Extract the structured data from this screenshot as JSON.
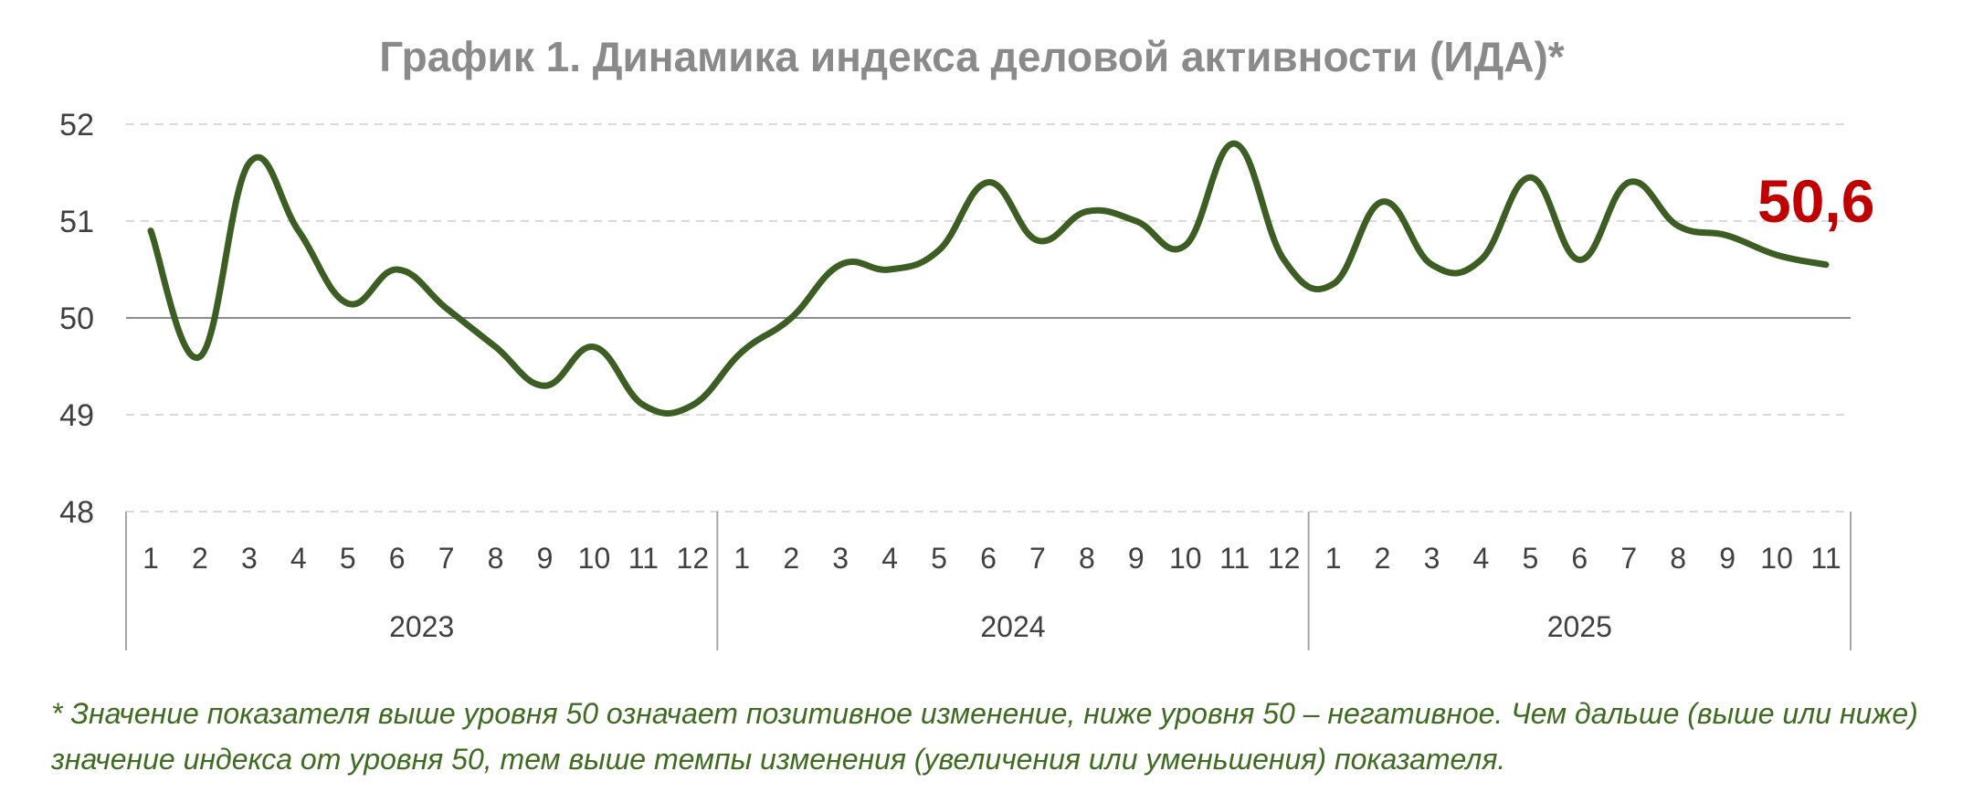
{
  "chart_data": {
    "type": "line",
    "title": "График 1. Динамика индекса деловой активности (ИДА)*",
    "ylim": [
      48,
      52
    ],
    "yticks": [
      "48",
      "49",
      "50",
      "51",
      "52"
    ],
    "reference_line": 50,
    "grid": "horizontal dashed",
    "groups": [
      {
        "label": "2023",
        "months": [
          "1",
          "2",
          "3",
          "4",
          "5",
          "6",
          "7",
          "8",
          "9",
          "10",
          "11",
          "12"
        ]
      },
      {
        "label": "2024",
        "months": [
          "1",
          "2",
          "3",
          "4",
          "5",
          "6",
          "7",
          "8",
          "9",
          "10",
          "11",
          "12"
        ]
      },
      {
        "label": "2025",
        "months": [
          "1",
          "2",
          "3",
          "4",
          "5",
          "6",
          "7",
          "8",
          "9",
          "10",
          "11"
        ]
      }
    ],
    "series": [
      {
        "values": [
          50.9,
          49.6,
          51.6,
          50.9,
          50.15,
          50.5,
          50.1,
          49.7,
          49.3,
          49.7,
          49.1,
          49.1,
          49.65,
          50.0,
          50.55,
          50.5,
          50.7,
          51.4,
          50.8,
          51.1,
          51.0,
          50.75,
          51.8,
          50.6,
          50.35,
          51.2,
          50.55,
          50.6,
          51.45,
          50.6,
          51.4,
          50.95,
          50.85,
          50.65,
          50.55
        ],
        "color": "#3d5e22"
      }
    ],
    "last_value_label": "50,6",
    "last_value_color": "#c00000"
  },
  "footnote": "* Значение показателя выше уровня 50 означает позитивное изменение, ниже уровня 50 – негативное. Чем дальше (выше или ниже) значение индекса от уровня 50, тем выше темпы изменения (увеличения или уменьшения) показателя."
}
